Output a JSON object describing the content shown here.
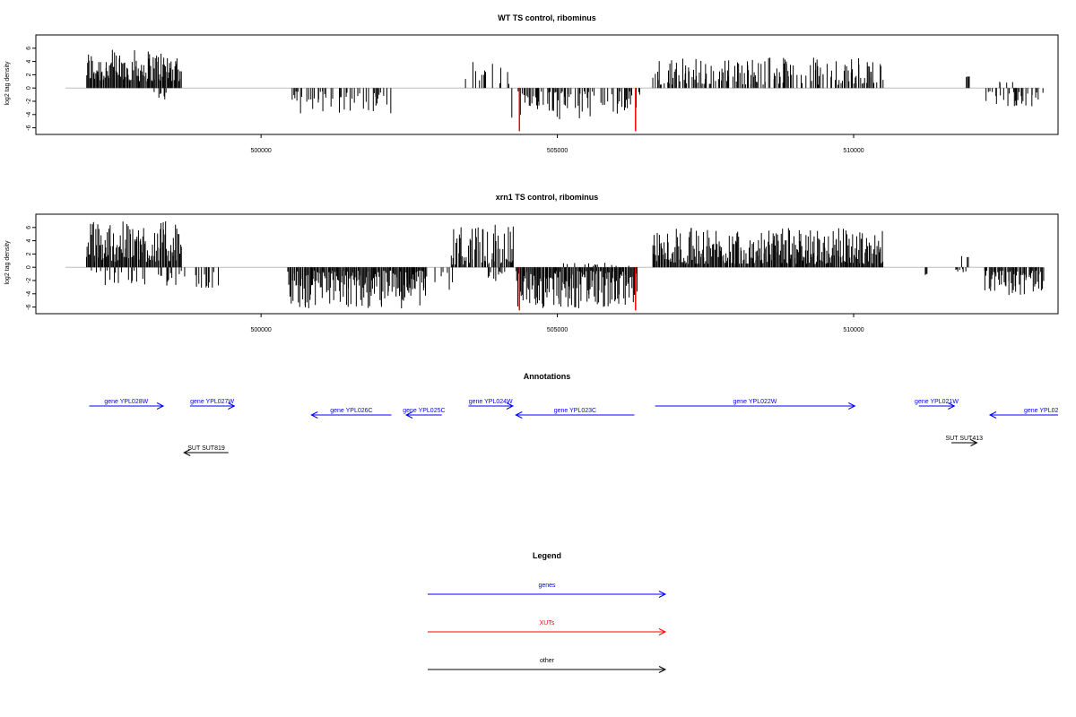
{
  "figure": {
    "panels": {
      "wt": {
        "title": "WT TS control, ribominus",
        "ylabel": "log2 tag density"
      },
      "xrn1": {
        "title": "xrn1 TS control, ribominus",
        "ylabel": "log2 tag density"
      }
    },
    "annotations_title": "Annotations",
    "legend_title": "Legend"
  },
  "colors": {
    "genes": "#0000ff",
    "xuts": "#ff0000",
    "other": "#000000",
    "bars": "#000000",
    "highlight": "#ff0000",
    "baseline": "#bebebe"
  },
  "chart_data": [
    {
      "type": "bar",
      "title": "WT TS control, ribominus",
      "xlabel": "",
      "ylabel": "log2 tag density",
      "xlim": [
        496200,
        513450
      ],
      "ylim": [
        -7,
        8
      ],
      "x_ticks": [
        500000,
        505000,
        510000
      ],
      "y_ticks": [
        -6,
        -4,
        -2,
        0,
        2,
        4,
        6
      ],
      "grid": false,
      "highlighted_bars": [
        {
          "x": 504360,
          "value": -6.5,
          "color": "#ff0000"
        },
        {
          "x": 506320,
          "value": -6.5,
          "color": "#ff0000"
        }
      ],
      "segments": [
        {
          "start": 497050,
          "end": 498650,
          "strand": "+",
          "min": 1.0,
          "max": 5.8,
          "density": 1.0
        },
        {
          "start": 498100,
          "end": 498400,
          "strand": "-",
          "min": 0.6,
          "max": 2.4,
          "density": 0.15
        },
        {
          "start": 500480,
          "end": 502200,
          "strand": "-",
          "min": 0.5,
          "max": 4.0,
          "density": 0.45
        },
        {
          "start": 503300,
          "end": 504200,
          "strand": "+",
          "min": 0.6,
          "max": 4.0,
          "density": 0.25
        },
        {
          "start": 504220,
          "end": 506400,
          "strand": "-",
          "min": 0.5,
          "max": 5.0,
          "density": 0.5
        },
        {
          "start": 506600,
          "end": 510500,
          "strand": "+",
          "min": 0.5,
          "max": 4.6,
          "density": 0.55
        },
        {
          "start": 511900,
          "end": 511950,
          "strand": "+",
          "min": 1.5,
          "max": 2.0,
          "density": 1.0
        },
        {
          "start": 512300,
          "end": 512700,
          "strand": "+",
          "min": 0.4,
          "max": 1.0,
          "density": 0.1
        },
        {
          "start": 512200,
          "end": 513200,
          "strand": "-",
          "min": 0.5,
          "max": 2.8,
          "density": 0.35
        }
      ]
    },
    {
      "type": "bar",
      "title": "xrn1 TS control, ribominus",
      "xlabel": "",
      "ylabel": "log2 tag density",
      "xlim": [
        496200,
        513450
      ],
      "ylim": [
        -7,
        8
      ],
      "x_ticks": [
        500000,
        505000,
        510000
      ],
      "y_ticks": [
        -6,
        -4,
        -2,
        0,
        2,
        4,
        6
      ],
      "grid": false,
      "highlighted_bars": [
        {
          "x": 504360,
          "value": -6.5,
          "color": "#ff0000"
        },
        {
          "x": 506320,
          "value": -6.5,
          "color": "#ff0000"
        }
      ],
      "segments": [
        {
          "start": 497050,
          "end": 498650,
          "strand": "+",
          "min": 0.8,
          "max": 7.0,
          "density": 1.0
        },
        {
          "start": 497050,
          "end": 498650,
          "strand": "-",
          "min": 0.5,
          "max": 2.8,
          "density": 0.2
        },
        {
          "start": 498650,
          "end": 499300,
          "strand": "-",
          "min": 0.6,
          "max": 3.2,
          "density": 0.25
        },
        {
          "start": 500450,
          "end": 502800,
          "strand": "-",
          "min": 0.5,
          "max": 6.2,
          "density": 1.0
        },
        {
          "start": 502400,
          "end": 503300,
          "strand": "-",
          "min": 0.5,
          "max": 3.5,
          "density": 0.15
        },
        {
          "start": 503200,
          "end": 504250,
          "strand": "+",
          "min": 0.4,
          "max": 6.5,
          "density": 0.8
        },
        {
          "start": 503800,
          "end": 504200,
          "strand": "-",
          "min": 0.5,
          "max": 2.2,
          "density": 0.3
        },
        {
          "start": 504300,
          "end": 506350,
          "strand": "-",
          "min": 0.5,
          "max": 6.2,
          "density": 1.0
        },
        {
          "start": 505000,
          "end": 506300,
          "strand": "+",
          "min": 0.2,
          "max": 0.7,
          "density": 0.15
        },
        {
          "start": 506600,
          "end": 510500,
          "strand": "+",
          "min": 0.5,
          "max": 6.0,
          "density": 1.0
        },
        {
          "start": 511200,
          "end": 511230,
          "strand": "-",
          "min": 1.0,
          "max": 1.2,
          "density": 1.0
        },
        {
          "start": 511800,
          "end": 512000,
          "strand": "+",
          "min": 0.5,
          "max": 2.2,
          "density": 0.3
        },
        {
          "start": 511700,
          "end": 511900,
          "strand": "-",
          "min": 0.3,
          "max": 0.8,
          "density": 0.3
        },
        {
          "start": 512200,
          "end": 513200,
          "strand": "-",
          "min": 0.5,
          "max": 4.2,
          "density": 0.9
        }
      ]
    },
    {
      "type": "table",
      "title": "Annotations",
      "features": [
        {
          "label": "gene YPL028W",
          "start": 497100,
          "end": 498350,
          "strand": "+",
          "kind": "gene",
          "row": 0
        },
        {
          "label": "gene YPL027W",
          "start": 498800,
          "end": 499550,
          "strand": "+",
          "kind": "gene",
          "row": 0
        },
        {
          "label": "gene YPL026C",
          "start": 500850,
          "end": 502200,
          "strand": "-",
          "kind": "gene",
          "row": 1
        },
        {
          "label": "gene YPL025C",
          "start": 502450,
          "end": 503050,
          "strand": "-",
          "kind": "gene",
          "row": 1
        },
        {
          "label": "gene YPL024W",
          "start": 503500,
          "end": 504250,
          "strand": "+",
          "kind": "gene",
          "row": 0
        },
        {
          "label": "gene YPL023C",
          "start": 504300,
          "end": 506300,
          "strand": "-",
          "kind": "gene",
          "row": 1
        },
        {
          "label": "gene YPL022W",
          "start": 506650,
          "end": 510020,
          "strand": "+",
          "kind": "gene",
          "row": 0
        },
        {
          "label": "gene YPL021W",
          "start": 511100,
          "end": 511700,
          "strand": "+",
          "kind": "gene",
          "row": 0
        },
        {
          "label": "gene YPL02",
          "start": 512300,
          "end": 513450,
          "strand": "-",
          "kind": "gene",
          "row": 1
        },
        {
          "label": "SUT SUT819",
          "start": 498700,
          "end": 499450,
          "strand": "-",
          "kind": "other",
          "row": 2
        },
        {
          "label": "SUT SUT413",
          "start": 511650,
          "end": 512080,
          "strand": "+",
          "kind": "other",
          "row": 3
        }
      ]
    },
    {
      "type": "table",
      "title": "Legend",
      "entries": [
        {
          "label": "genes",
          "kind": "gene"
        },
        {
          "label": "XUTs",
          "kind": "xut"
        },
        {
          "label": "other",
          "kind": "other"
        }
      ]
    }
  ]
}
